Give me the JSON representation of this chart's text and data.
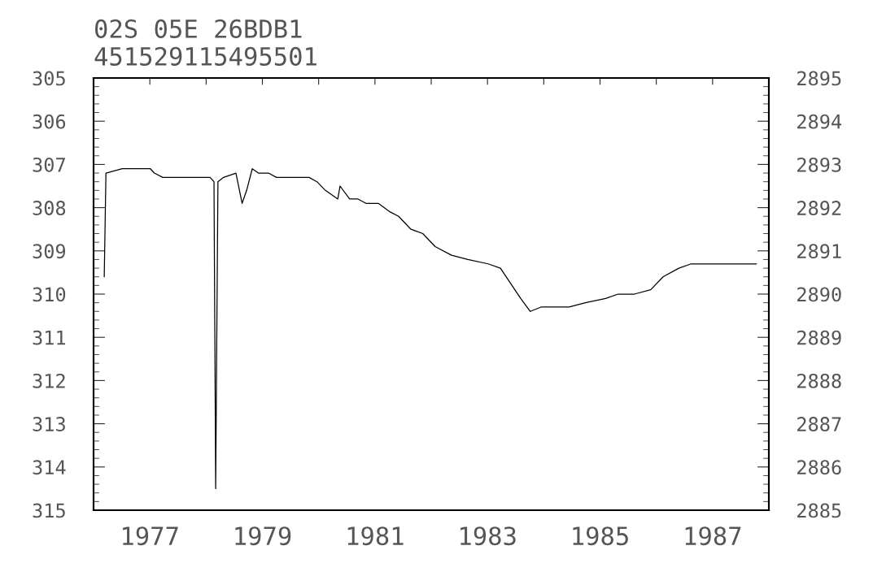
{
  "chart_data": {
    "type": "line",
    "title": "02S 05E 26BDB1",
    "subtitle": "451529115495501",
    "x": [
      1976.19,
      1976.22,
      1976.51,
      1976.65,
      1977.01,
      1977.08,
      1977.23,
      1977.59,
      1977.88,
      1978.07,
      1978.14,
      1978.17,
      1978.21,
      1978.31,
      1978.53,
      1978.64,
      1978.72,
      1978.82,
      1978.93,
      1979.11,
      1979.25,
      1979.4,
      1979.83,
      1979.97,
      1980.12,
      1980.34,
      1980.38,
      1980.55,
      1980.7,
      1980.84,
      1981.06,
      1981.27,
      1981.42,
      1981.64,
      1981.85,
      1982.07,
      1982.36,
      1982.65,
      1983.01,
      1983.23,
      1983.59,
      1983.76,
      1983.95,
      1984.16,
      1984.45,
      1984.74,
      1985.1,
      1985.32,
      1985.61,
      1985.9,
      1986.12,
      1986.4,
      1986.62,
      1987.06,
      1987.34,
      1987.56,
      1987.78
    ],
    "series": [
      {
        "color": "#000000",
        "values": [
          309.6,
          307.2,
          307.1,
          307.1,
          307.1,
          307.2,
          307.3,
          307.3,
          307.3,
          307.3,
          307.4,
          314.5,
          307.4,
          307.3,
          307.2,
          307.9,
          307.6,
          307.1,
          307.2,
          307.2,
          307.3,
          307.3,
          307.3,
          307.4,
          307.6,
          307.8,
          307.5,
          307.8,
          307.8,
          307.9,
          307.9,
          308.1,
          308.2,
          308.5,
          308.6,
          308.9,
          309.1,
          309.2,
          309.3,
          309.4,
          310.1,
          310.4,
          310.3,
          310.3,
          310.3,
          310.2,
          310.1,
          310.0,
          310.0,
          309.9,
          309.6,
          309.4,
          309.3,
          309.3,
          309.3,
          309.3,
          309.3
        ]
      }
    ],
    "xlim": [
      1976,
      1988
    ],
    "xticks": [
      {
        "value": 1976,
        "label": null
      },
      1977,
      {
        "value": 1978,
        "label": null
      },
      1979,
      {
        "value": 1980,
        "label": null
      },
      1981,
      {
        "value": 1982,
        "label": null
      },
      1983,
      {
        "value": 1984,
        "label": null
      },
      1985,
      {
        "value": 1986,
        "label": null
      },
      1987,
      {
        "value": 1988,
        "label": null
      }
    ],
    "ylim": [
      315,
      305
    ],
    "yticks": [
      305,
      306,
      307,
      308,
      309,
      310,
      311,
      312,
      313,
      314,
      315
    ],
    "y2lim": [
      2885,
      2895
    ],
    "y2ticks": [
      2885,
      2886,
      2887,
      2888,
      2889,
      2890,
      2891,
      2892,
      2893,
      2894,
      2895
    ],
    "grid": false,
    "legend": false,
    "marker": "none",
    "line_style": "solid"
  }
}
